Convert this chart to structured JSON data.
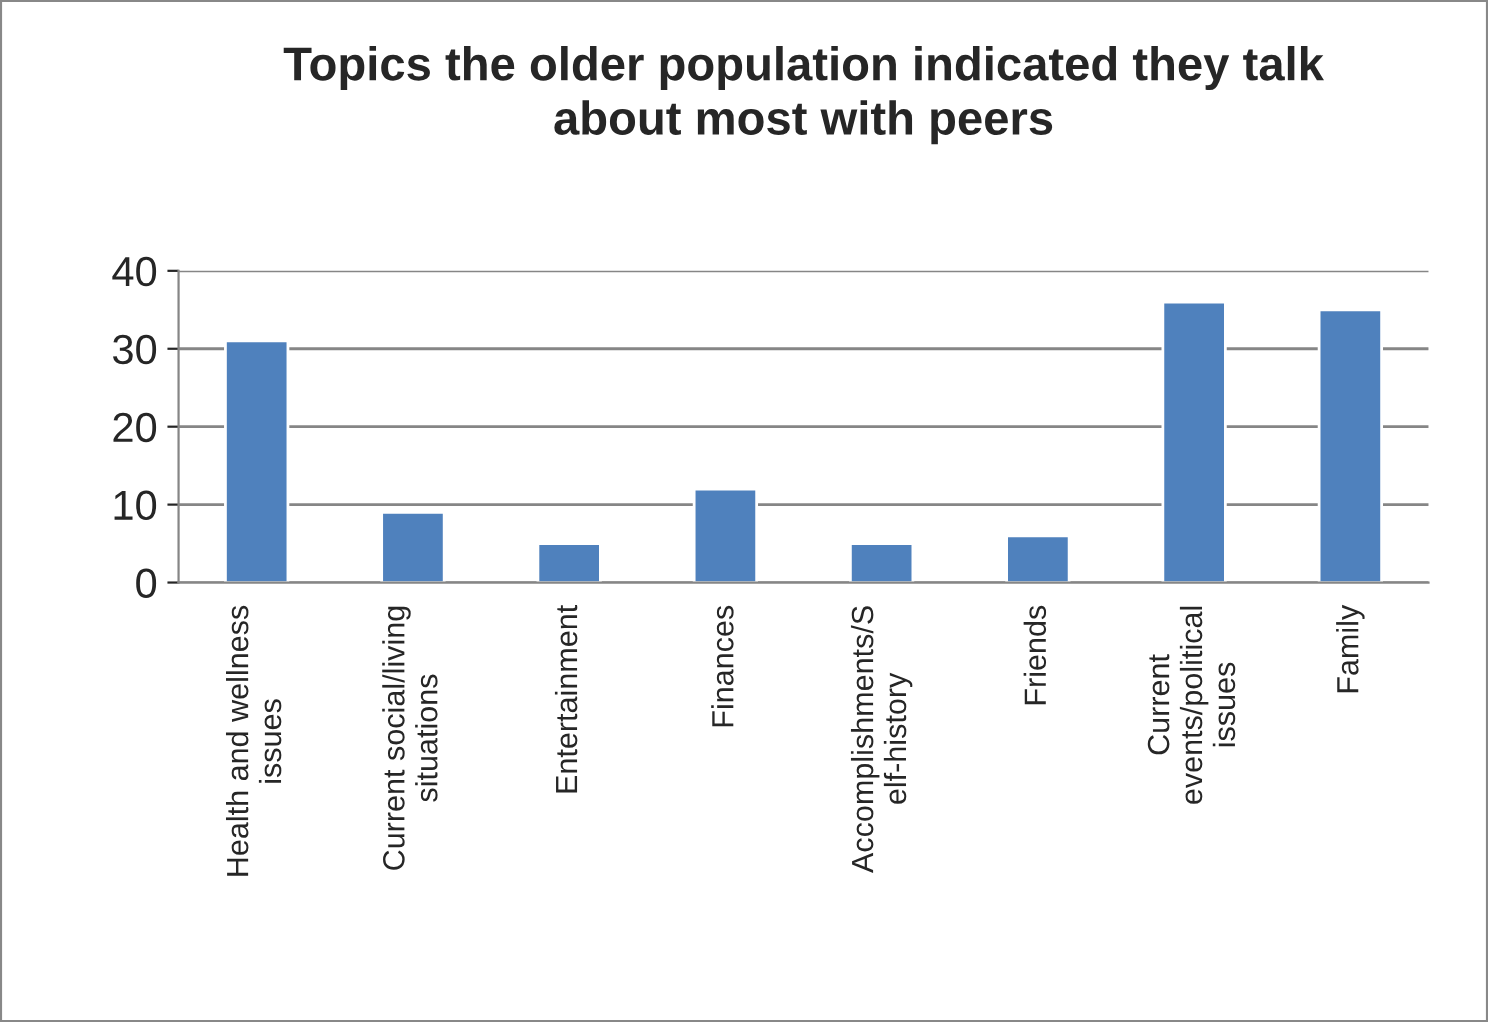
{
  "chart_data": {
    "type": "bar",
    "title": "Topics the older population indicated they talk\nabout most with peers",
    "categories": [
      "Health and wellness\nissues",
      "Current social/living\nsituations",
      "Entertainment",
      "Finances",
      "Accomplishments/S\nelf-history",
      "Friends",
      "Current\nevents/political\nissues",
      "Family"
    ],
    "values": [
      31,
      9,
      5,
      12,
      5,
      6,
      36,
      35
    ],
    "color": "#4f81bd",
    "ylim": [
      0,
      40
    ],
    "yticks": [
      0,
      10,
      20,
      30,
      40
    ],
    "grid": "y",
    "legend": false
  }
}
